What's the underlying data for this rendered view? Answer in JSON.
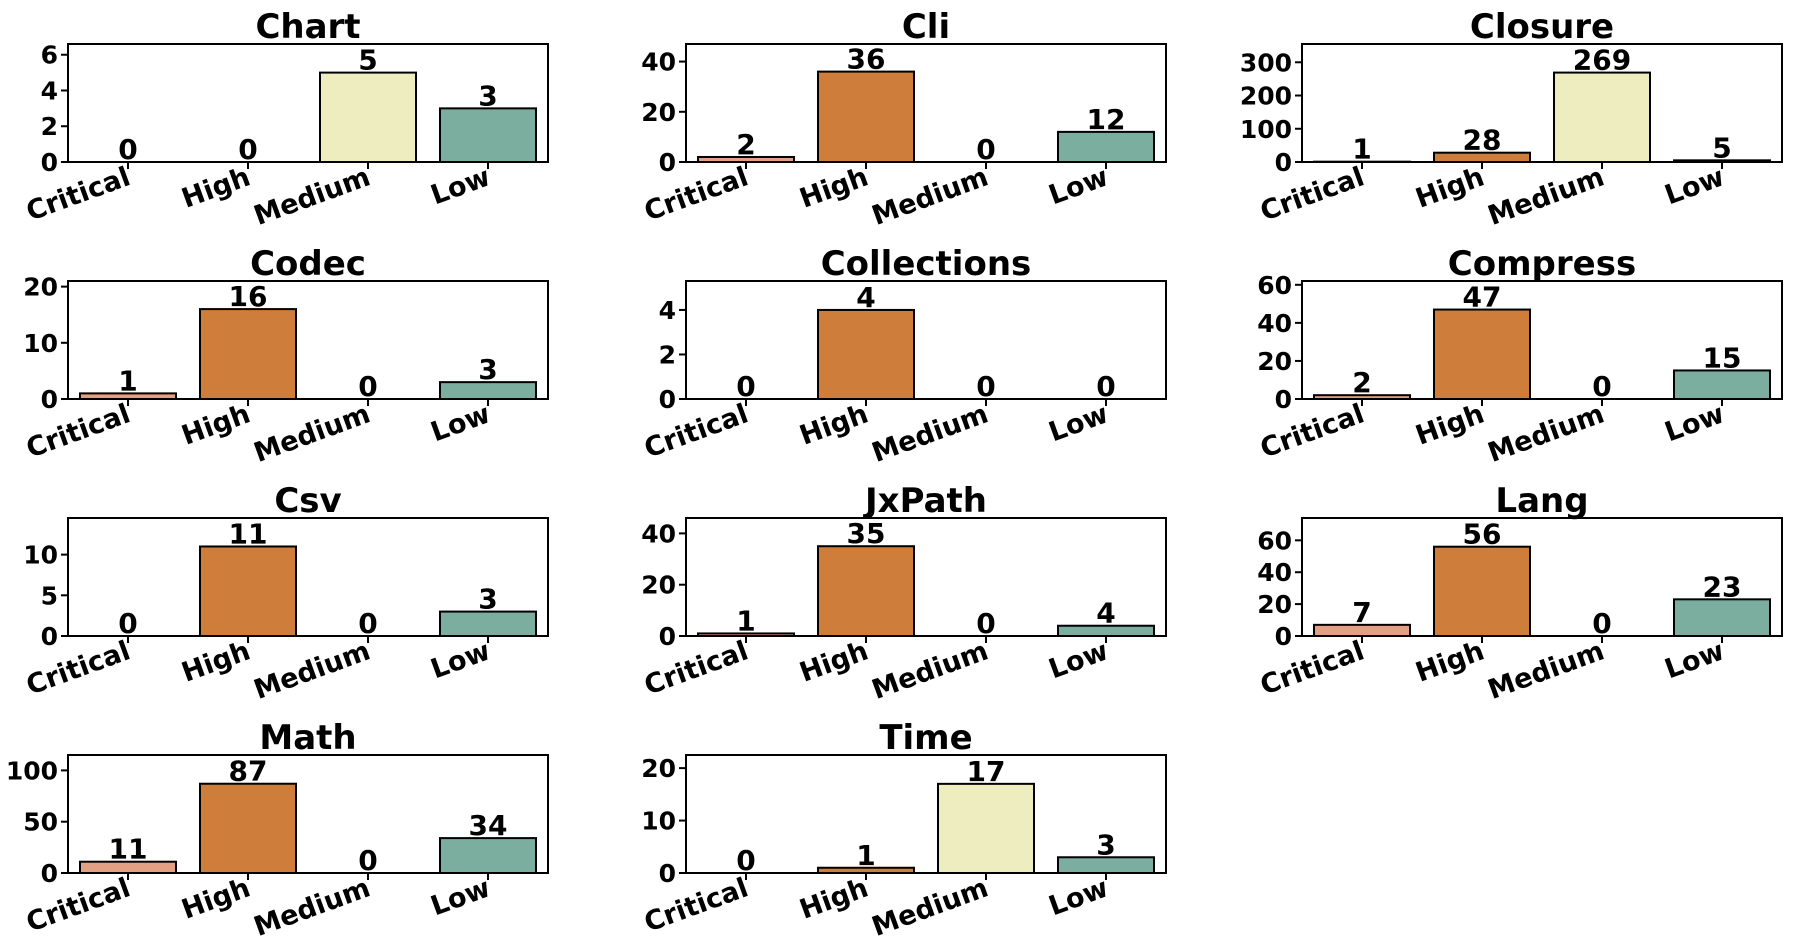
{
  "colors": {
    "Critical": "#E3A083",
    "High": "#CE7E3A",
    "Medium": "#EEEDC0",
    "Low": "#7BAE9E"
  },
  "chart_data": [
    {
      "type": "bar",
      "title": "Chart",
      "categories": [
        "Critical",
        "High",
        "Medium",
        "Low"
      ],
      "values": [
        0,
        0,
        5,
        3
      ],
      "ylim": [
        0,
        6.6
      ],
      "yticks": [
        0,
        2,
        4,
        6
      ]
    },
    {
      "type": "bar",
      "title": "Cli",
      "categories": [
        "Critical",
        "High",
        "Medium",
        "Low"
      ],
      "values": [
        2,
        36,
        0,
        12
      ],
      "ylim": [
        0,
        47
      ],
      "yticks": [
        0,
        20,
        40
      ]
    },
    {
      "type": "bar",
      "title": "Closure",
      "categories": [
        "Critical",
        "High",
        "Medium",
        "Low"
      ],
      "values": [
        1,
        28,
        269,
        5
      ],
      "ylim": [
        0,
        355
      ],
      "yticks": [
        0,
        100,
        200,
        300
      ]
    },
    {
      "type": "bar",
      "title": "Codec",
      "categories": [
        "Critical",
        "High",
        "Medium",
        "Low"
      ],
      "values": [
        1,
        16,
        0,
        3
      ],
      "ylim": [
        0,
        21
      ],
      "yticks": [
        0,
        10,
        20
      ]
    },
    {
      "type": "bar",
      "title": "Collections",
      "categories": [
        "Critical",
        "High",
        "Medium",
        "Low"
      ],
      "values": [
        0,
        4,
        0,
        0
      ],
      "ylim": [
        0,
        5.3
      ],
      "yticks": [
        0,
        2,
        4
      ]
    },
    {
      "type": "bar",
      "title": "Compress",
      "categories": [
        "Critical",
        "High",
        "Medium",
        "Low"
      ],
      "values": [
        2,
        47,
        0,
        15
      ],
      "ylim": [
        0,
        62
      ],
      "yticks": [
        0,
        20,
        40,
        60
      ]
    },
    {
      "type": "bar",
      "title": "Csv",
      "categories": [
        "Critical",
        "High",
        "Medium",
        "Low"
      ],
      "values": [
        0,
        11,
        0,
        3
      ],
      "ylim": [
        0,
        14.5
      ],
      "yticks": [
        0,
        5,
        10
      ]
    },
    {
      "type": "bar",
      "title": "JxPath",
      "categories": [
        "Critical",
        "High",
        "Medium",
        "Low"
      ],
      "values": [
        1,
        35,
        0,
        4
      ],
      "ylim": [
        0,
        46
      ],
      "yticks": [
        0,
        20,
        40
      ]
    },
    {
      "type": "bar",
      "title": "Lang",
      "categories": [
        "Critical",
        "High",
        "Medium",
        "Low"
      ],
      "values": [
        7,
        56,
        0,
        23
      ],
      "ylim": [
        0,
        74
      ],
      "yticks": [
        0,
        20,
        40,
        60
      ]
    },
    {
      "type": "bar",
      "title": "Math",
      "categories": [
        "Critical",
        "High",
        "Medium",
        "Low"
      ],
      "values": [
        11,
        87,
        0,
        34
      ],
      "ylim": [
        0,
        115
      ],
      "yticks": [
        0,
        50,
        100
      ]
    },
    {
      "type": "bar",
      "title": "Time",
      "categories": [
        "Critical",
        "High",
        "Medium",
        "Low"
      ],
      "values": [
        0,
        1,
        17,
        3
      ],
      "ylim": [
        0,
        22.5
      ],
      "yticks": [
        0,
        10,
        20
      ]
    }
  ]
}
